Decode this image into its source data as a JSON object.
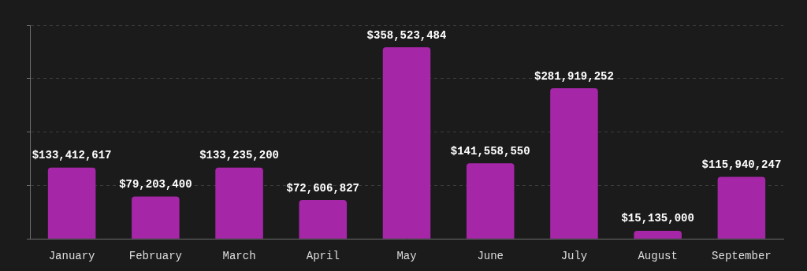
{
  "chart_data": {
    "type": "bar",
    "categories": [
      "January",
      "February",
      "March",
      "April",
      "May",
      "June",
      "July",
      "August",
      "September"
    ],
    "values": [
      133412617,
      79203400,
      133235200,
      72606827,
      358523484,
      141558550,
      281919252,
      15135000,
      115940247
    ],
    "value_labels": [
      "$133,412,617",
      "$79,203,400",
      "$133,235,200",
      "$72,606,827",
      "$358,523,484",
      "$141,558,550",
      "$281,919,252",
      "$15,135,000",
      "$115,940,247"
    ],
    "color": "#a626a8",
    "ylim": [
      0,
      400000000
    ],
    "yticks": [
      0,
      100000000,
      200000000,
      300000000,
      400000000
    ],
    "grid": true,
    "data_labels": true,
    "tick_labels": "x"
  }
}
